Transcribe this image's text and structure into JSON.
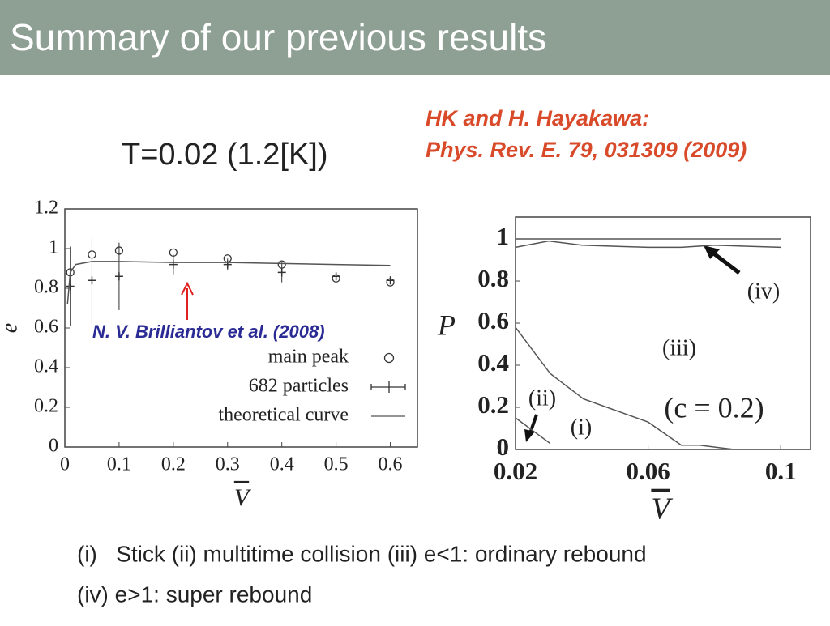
{
  "header": {
    "title": "Summary of our previous results"
  },
  "condition": "T=0.02 (1.2[K])",
  "reference": {
    "line1": "HK and H. Hayakawa:",
    "line2": "Phys. Rev. E. 79, 031309 (2009)"
  },
  "captions": [
    "(i)   Stick (ii) multitime collision (iii) e<1: ordinary rebound",
    "(iv) e>1: super rebound"
  ],
  "chart_data": [
    {
      "type": "scatter",
      "xlabel": "V",
      "ylabel": "e",
      "annotation": "N. V. Brilliantov et al. (2008)",
      "xlim": [
        0,
        0.65
      ],
      "ylim": [
        0,
        1.2
      ],
      "xticks": [
        0,
        0.1,
        0.2,
        0.3,
        0.4,
        0.5,
        0.6
      ],
      "yticks": [
        0,
        0.2,
        0.4,
        0.6,
        0.8,
        1,
        1.2
      ],
      "grid": false,
      "legend": "lower right",
      "series": [
        {
          "name": "main peak",
          "marker": "circle",
          "color": "#333333",
          "x": [
            0.01,
            0.05,
            0.1,
            0.2,
            0.3,
            0.4,
            0.5,
            0.6
          ],
          "values": [
            0.88,
            0.97,
            0.99,
            0.98,
            0.95,
            0.92,
            0.85,
            0.83
          ]
        },
        {
          "name": "682 particles",
          "marker": "plus",
          "color": "#333333",
          "x": [
            0.01,
            0.05,
            0.1,
            0.2,
            0.3,
            0.4,
            0.5,
            0.6
          ],
          "values": [
            0.81,
            0.84,
            0.86,
            0.92,
            0.92,
            0.88,
            0.86,
            0.84
          ],
          "errors": [
            0.2,
            0.22,
            0.17,
            0.05,
            0.03,
            0.05,
            0.02,
            0.02
          ]
        },
        {
          "name": "theoretical curve",
          "marker": "none",
          "color": "#555555",
          "x": [
            0.005,
            0.01,
            0.02,
            0.05,
            0.1,
            0.2,
            0.3,
            0.4,
            0.5,
            0.6
          ],
          "values": [
            0.72,
            0.88,
            0.92,
            0.935,
            0.935,
            0.93,
            0.93,
            0.925,
            0.92,
            0.915
          ]
        }
      ]
    },
    {
      "type": "line",
      "xlabel": "V",
      "ylabel": "P",
      "annotations": [
        "(iv)",
        "(iii)",
        "(ii)",
        "(i)",
        "(c = 0.2)"
      ],
      "xlim": [
        0.02,
        0.109
      ],
      "ylim": [
        0,
        1.104
      ],
      "xticks": [
        0.02,
        0.06,
        0.1
      ],
      "yticks": [
        0,
        0.2,
        0.4,
        0.6,
        0.8,
        1
      ],
      "grid": false,
      "series": [
        {
          "color": "#555555",
          "x": [
            0.02,
            0.1
          ],
          "values": [
            1,
            1
          ]
        },
        {
          "color": "#555555",
          "x": [
            0.02,
            0.03,
            0.04,
            0.05,
            0.06,
            0.07,
            0.08,
            0.09,
            0.1
          ],
          "values": [
            0.96,
            0.99,
            0.97,
            0.965,
            0.96,
            0.96,
            0.97,
            0.965,
            0.96
          ]
        },
        {
          "color": "#555555",
          "x": [
            0.02,
            0.0305,
            0.0405,
            0.06,
            0.07,
            0.0755,
            0.086
          ],
          "values": [
            0.58,
            0.36,
            0.24,
            0.13,
            0.02,
            0.02,
            0
          ]
        },
        {
          "color": "#555555",
          "x": [
            0.02,
            0.0305
          ],
          "values": [
            0.15,
            0.028
          ]
        }
      ]
    }
  ]
}
